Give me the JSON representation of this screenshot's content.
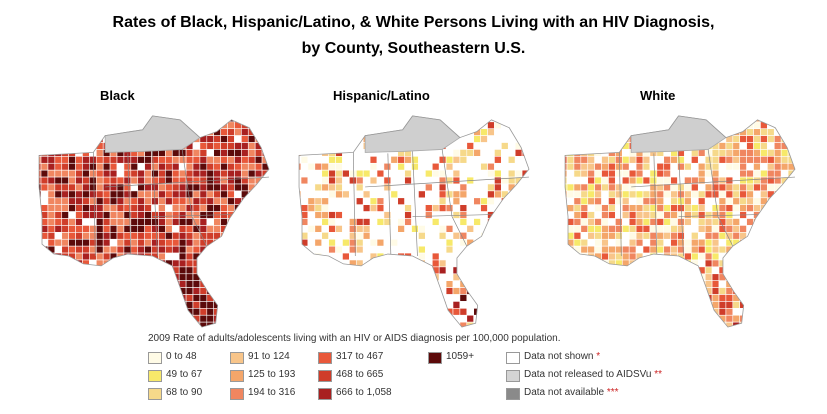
{
  "title_line1": "Rates of Black, Hispanic/Latino, & White Persons Living with an HIV Diagnosis,",
  "title_line2": "by County, Southeastern U.S.",
  "maps": [
    {
      "label": "Black",
      "base": "#c0392b",
      "accent": "#6b0d0d"
    },
    {
      "label": "Hispanic/Latino",
      "base": "#ffffff",
      "accent": "#e8583a"
    },
    {
      "label": "White",
      "base": "#fbe9a8",
      "accent": "#e8833a"
    }
  ],
  "legend": {
    "caption": "2009 Rate of adults/adolescents living with an HIV or AIDS diagnosis per 100,000 population.",
    "bins": [
      {
        "label": "0 to 48",
        "color": "#fffbe6"
      },
      {
        "label": "49 to 67",
        "color": "#f7e96a"
      },
      {
        "label": "68 to 90",
        "color": "#f6d98a"
      },
      {
        "label": "91 to 124",
        "color": "#f8c58a"
      },
      {
        "label": "125 to 193",
        "color": "#f4a66a"
      },
      {
        "label": "194 to 316",
        "color": "#f08660"
      },
      {
        "label": "317 to 467",
        "color": "#e8583a"
      },
      {
        "label": "468 to 665",
        "color": "#cf3d2a"
      },
      {
        "label": "666 to 1,058",
        "color": "#a82020"
      },
      {
        "label": "1059+",
        "color": "#5c0a0a"
      }
    ],
    "status": [
      {
        "label": "Data not shown",
        "mark": "*",
        "color": "#ffffff"
      },
      {
        "label": "Data not released to AIDSVu",
        "mark": "**",
        "color": "#d4d4d4"
      },
      {
        "label": "Data not available",
        "mark": "***",
        "color": "#8a8a8a"
      }
    ]
  }
}
